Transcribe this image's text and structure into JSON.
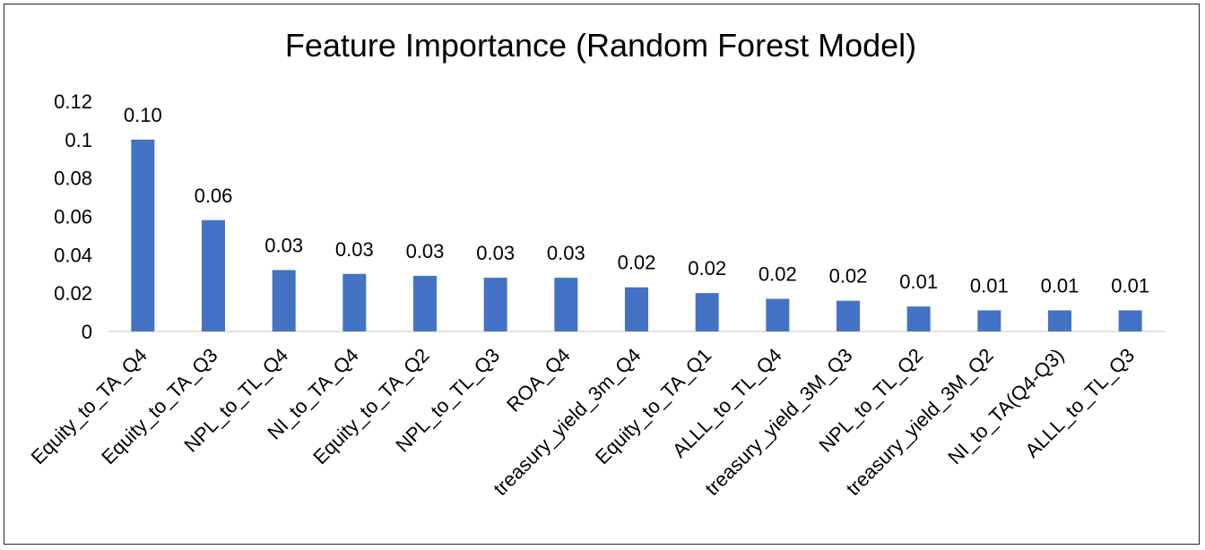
{
  "chart_data": {
    "type": "bar",
    "title": "Feature Importance (Random Forest Model)",
    "xlabel": "",
    "ylabel": "",
    "ylim": [
      0,
      0.12
    ],
    "yticks": [
      "0",
      "0.02",
      "0.04",
      "0.06",
      "0.08",
      "0.1",
      "0.12"
    ],
    "grid": false,
    "legend": "none",
    "bar_color": "#4472C4",
    "categories": [
      "Equity_to_TA_Q4",
      "Equity_to_TA_Q3",
      "NPL_to_TL_Q4",
      "NI_to_TA_Q4",
      "Equity_to_TA_Q2",
      "NPL_to_TL_Q3",
      "ROA_Q4",
      "treasury_yield_3m_Q4",
      "Equity_to_TA_Q1",
      "ALLL_to_TL_Q4",
      "treasury_yield_3M_Q3",
      "NPL_to_TL_Q2",
      "treasury_yield_3M_Q2",
      "NI_to_TA(Q4-Q3)",
      "ALLL_to_TL_Q3"
    ],
    "values": [
      0.1,
      0.058,
      0.032,
      0.03,
      0.029,
      0.028,
      0.028,
      0.023,
      0.02,
      0.017,
      0.016,
      0.013,
      0.011,
      0.011,
      0.011
    ],
    "data_labels": [
      "0.10",
      "0.06",
      "0.03",
      "0.03",
      "0.03",
      "0.03",
      "0.03",
      "0.02",
      "0.02",
      "0.02",
      "0.02",
      "0.01",
      "0.01",
      "0.01",
      "0.01"
    ]
  }
}
